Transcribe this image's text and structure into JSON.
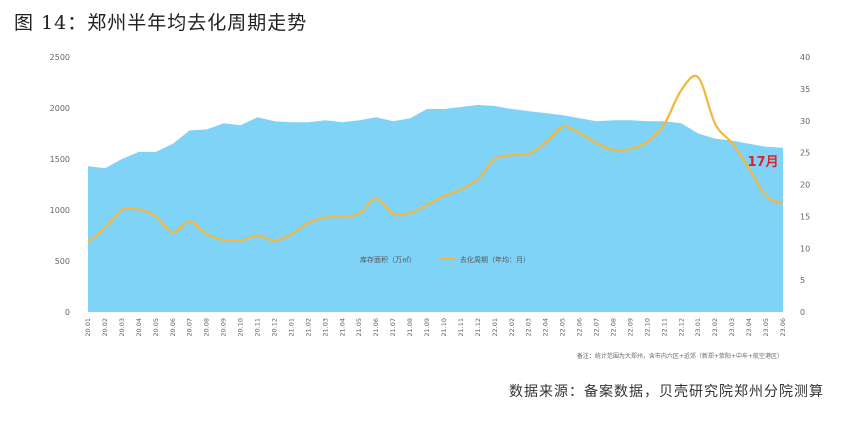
{
  "figure": {
    "title": "图 14：郑州半年均去化周期走势",
    "source": "数据来源：备案数据，贝壳研究院郑州分院测算",
    "note": "备注：统计范围为大郑州，含市内六区+近郊（新郑+荥阳+中牟+航空港区）"
  },
  "chart_data": {
    "type": "area",
    "categories": [
      "20.01",
      "20.02",
      "20.03",
      "20.04",
      "20.05",
      "20.06",
      "20.07",
      "20.08",
      "20.09",
      "20.10",
      "20.11",
      "20.12",
      "21.01",
      "21.02",
      "21.03",
      "21.04",
      "21.05",
      "21.06",
      "21.07",
      "21.08",
      "21.09",
      "21.10",
      "21.11",
      "21.12",
      "22.01",
      "22.02",
      "22.03",
      "22.04",
      "22.05",
      "22.06",
      "22.07",
      "22.08",
      "22.09",
      "22.10",
      "22.11",
      "22.12",
      "23.01",
      "23.02",
      "23.03",
      "23.04",
      "23.05",
      "23.06"
    ],
    "series": [
      {
        "name": "库存面积（万㎡）",
        "type": "area",
        "axis": "left",
        "color": "#7fd3f7",
        "values": [
          1430,
          1410,
          1500,
          1570,
          1570,
          1650,
          1780,
          1790,
          1850,
          1830,
          1910,
          1870,
          1860,
          1860,
          1880,
          1860,
          1880,
          1910,
          1870,
          1900,
          1990,
          1990,
          2010,
          2030,
          2020,
          1990,
          1970,
          1950,
          1930,
          1900,
          1870,
          1880,
          1880,
          1870,
          1870,
          1850,
          1750,
          1700,
          1680,
          1650,
          1620,
          1610
        ]
      },
      {
        "name": "去化周期（年均：月）",
        "type": "line",
        "axis": "right",
        "color": "#f4b63d",
        "values": [
          11,
          13.2,
          16,
          16.1,
          15,
          12.5,
          14.2,
          12.2,
          11.3,
          11.2,
          12,
          11.2,
          12.2,
          14,
          14.8,
          15,
          15.4,
          17.8,
          15.4,
          15.5,
          16.8,
          18.2,
          19.2,
          20.8,
          24,
          24.6,
          24.8,
          26.6,
          29,
          28.1,
          26.5,
          25.4,
          25.6,
          26.7,
          29.5,
          34.8,
          36.8,
          29.5,
          26.5,
          22.5,
          18.2,
          17
        ]
      }
    ],
    "y_left": {
      "min": 0,
      "max": 2500,
      "ticks": [
        0,
        500,
        1000,
        1500,
        2000,
        2500
      ]
    },
    "y_right": {
      "min": 0,
      "max": 40,
      "ticks": [
        0,
        5,
        10,
        15,
        20,
        25,
        30,
        35,
        40
      ]
    },
    "grid": false,
    "legend": "center",
    "annotation": {
      "text": "17月",
      "at_category": "23.05"
    }
  }
}
